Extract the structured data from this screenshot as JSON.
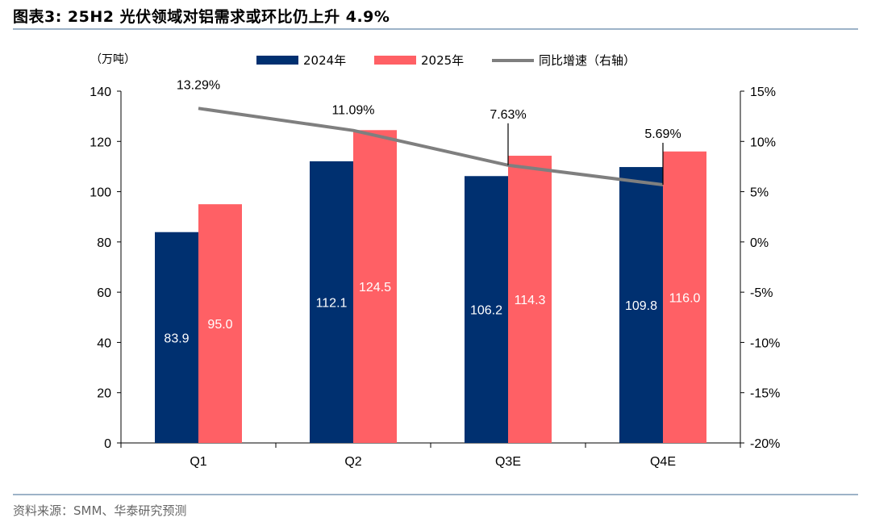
{
  "figure": {
    "title": "图表3:  25H2 光伏领域对铝需求或环比仍上升 4.9%",
    "source": "资料来源：SMM、华泰研究预测"
  },
  "chart_data": {
    "type": "bar",
    "unit_label": "（万吨）",
    "categories": [
      "Q1",
      "Q2",
      "Q3E",
      "Q4E"
    ],
    "series": [
      {
        "name": "2024年",
        "type": "bar",
        "axis": "left",
        "color": "#003070",
        "values": [
          83.9,
          112.1,
          106.2,
          109.8
        ],
        "labels": [
          "83.9",
          "112.1",
          "106.2",
          "109.8"
        ]
      },
      {
        "name": "2025年",
        "type": "bar",
        "axis": "left",
        "color": "#ff6065",
        "values": [
          95.0,
          124.5,
          114.3,
          116.0
        ],
        "labels": [
          "95.0",
          "124.5",
          "114.3",
          "116.0"
        ]
      },
      {
        "name": "同比增速（右轴）",
        "type": "line",
        "axis": "right",
        "color": "#7f7f7f",
        "values": [
          13.29,
          11.09,
          7.63,
          5.69
        ],
        "labels": [
          "13.29%",
          "11.09%",
          "7.63%",
          "5.69%"
        ]
      }
    ],
    "y_left": {
      "min": 0,
      "max": 140,
      "ticks": [
        "0",
        "20",
        "40",
        "60",
        "80",
        "100",
        "120",
        "140"
      ]
    },
    "y_right": {
      "min": -20,
      "max": 15,
      "ticks": [
        "-20%",
        "-15%",
        "-10%",
        "-5%",
        "0%",
        "5%",
        "10%",
        "15%"
      ]
    },
    "grid": false,
    "legend_position": "top"
  }
}
